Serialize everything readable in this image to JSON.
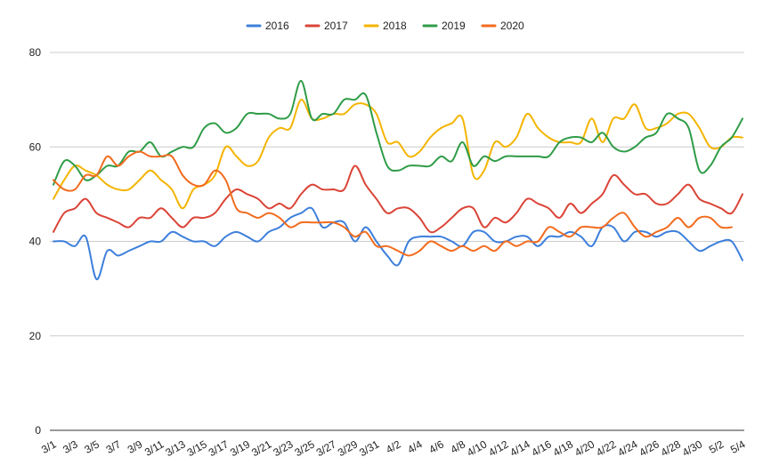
{
  "chart_data": {
    "type": "line",
    "title": "",
    "xlabel": "",
    "ylabel": "",
    "ylim": [
      0,
      80
    ],
    "yticks": [
      0,
      20,
      40,
      60,
      80
    ],
    "grid": true,
    "legend_position": "top-center",
    "x": [
      "3/1",
      "3/2",
      "3/3",
      "3/4",
      "3/5",
      "3/6",
      "3/7",
      "3/8",
      "3/9",
      "3/10",
      "3/11",
      "3/12",
      "3/13",
      "3/14",
      "3/15",
      "3/16",
      "3/17",
      "3/18",
      "3/19",
      "3/20",
      "3/21",
      "3/22",
      "3/23",
      "3/24",
      "3/25",
      "3/26",
      "3/27",
      "3/28",
      "3/29",
      "3/30",
      "3/31",
      "4/1",
      "4/2",
      "4/3",
      "4/4",
      "4/5",
      "4/6",
      "4/7",
      "4/8",
      "4/9",
      "4/10",
      "4/11",
      "4/12",
      "4/13",
      "4/14",
      "4/15",
      "4/16",
      "4/17",
      "4/18",
      "4/19",
      "4/20",
      "4/21",
      "4/22",
      "4/23",
      "4/24",
      "4/25",
      "4/26",
      "4/27",
      "4/28",
      "4/29",
      "4/30",
      "5/1",
      "5/2",
      "5/3",
      "5/4"
    ],
    "x_tick_labels": [
      "3/1",
      "3/3",
      "3/5",
      "3/7",
      "3/9",
      "3/11",
      "3/13",
      "3/15",
      "3/17",
      "3/19",
      "3/21",
      "3/23",
      "3/25",
      "3/27",
      "3/29",
      "3/31",
      "4/2",
      "4/4",
      "4/6",
      "4/8",
      "4/10",
      "4/12",
      "4/14",
      "4/16",
      "4/18",
      "4/20",
      "4/22",
      "4/24",
      "4/26",
      "4/28",
      "4/30",
      "5/2",
      "5/4"
    ],
    "series": [
      {
        "name": "2016",
        "color": "#3d7fdb",
        "values": [
          40,
          40,
          39,
          41,
          32,
          38,
          37,
          38,
          39,
          40,
          40,
          42,
          41,
          40,
          40,
          39,
          41,
          42,
          41,
          40,
          42,
          43,
          45,
          46,
          47,
          43,
          44,
          44,
          40,
          43,
          40,
          37,
          35,
          40,
          41,
          41,
          41,
          40,
          39,
          42,
          42,
          40,
          40,
          41,
          41,
          39,
          41,
          41,
          42,
          41,
          39,
          43,
          43,
          40,
          42,
          42,
          41,
          42,
          42,
          40,
          38,
          39,
          40,
          40,
          36
        ]
      },
      {
        "name": "2017",
        "color": "#db4437",
        "values": [
          42,
          46,
          47,
          49,
          46,
          45,
          44,
          43,
          45,
          45,
          47,
          45,
          43,
          45,
          45,
          46,
          49,
          51,
          50,
          49,
          47,
          48,
          47,
          50,
          52,
          51,
          51,
          51,
          56,
          52,
          49,
          46,
          47,
          47,
          45,
          42,
          43,
          45,
          47,
          47,
          43,
          45,
          44,
          46,
          49,
          48,
          47,
          45,
          48,
          46,
          48,
          50,
          54,
          52,
          50,
          50,
          48,
          48,
          50,
          52,
          49,
          48,
          47,
          46,
          50
        ]
      },
      {
        "name": "2018",
        "color": "#f4b400",
        "values": [
          49,
          53,
          56,
          55,
          54,
          52,
          51,
          51,
          53,
          55,
          53,
          51,
          47,
          51,
          52,
          54,
          60,
          58,
          56,
          57,
          62,
          64,
          64,
          70,
          66,
          66,
          67,
          67,
          69,
          69,
          67,
          61,
          61,
          58,
          59,
          62,
          64,
          65,
          66,
          54,
          55,
          61,
          60,
          62,
          67,
          64,
          62,
          61,
          61,
          61,
          66,
          61,
          66,
          66,
          69,
          64,
          64,
          65,
          67,
          67,
          64,
          60,
          60,
          62,
          62
        ]
      },
      {
        "name": "2019",
        "color": "#2f9c47",
        "values": [
          52,
          57,
          56,
          53,
          54,
          56,
          56,
          59,
          59,
          61,
          58,
          59,
          60,
          60,
          64,
          65,
          63,
          64,
          67,
          67,
          67,
          66,
          67,
          74,
          66,
          67,
          67,
          70,
          70,
          71,
          63,
          56,
          55,
          56,
          56,
          56,
          58,
          57,
          61,
          56,
          58,
          57,
          58,
          58,
          58,
          58,
          58,
          61,
          62,
          62,
          61,
          63,
          60,
          59,
          60,
          62,
          63,
          67,
          66,
          64,
          55,
          56,
          60,
          62,
          66
        ]
      },
      {
        "name": "2020",
        "color": "#f26b1d",
        "values": [
          53,
          51,
          51,
          54,
          54,
          58,
          56,
          58,
          59,
          58,
          58,
          58,
          54,
          52,
          52,
          55,
          53,
          47,
          46,
          45,
          46,
          45,
          43,
          44,
          44,
          44,
          44,
          43,
          41,
          42,
          39,
          39,
          38,
          37,
          38,
          40,
          39,
          38,
          39,
          38,
          39,
          38,
          40,
          39,
          40,
          40,
          43,
          42,
          41,
          43,
          43,
          43,
          45,
          46,
          43,
          41,
          42,
          43,
          45,
          43,
          45,
          45,
          43,
          43,
          null
        ]
      }
    ]
  }
}
